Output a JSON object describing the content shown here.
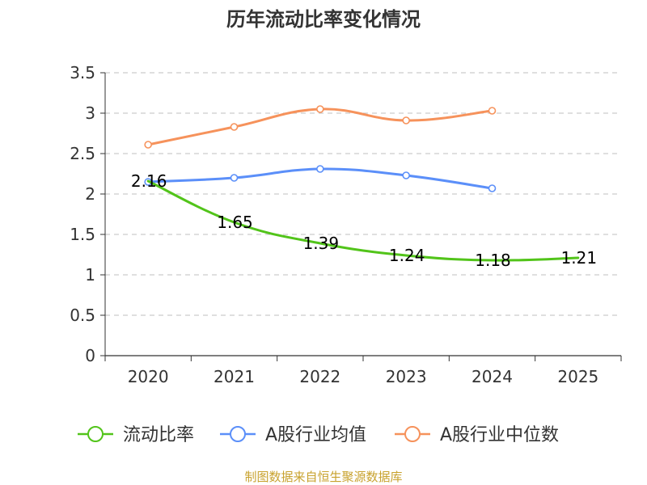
{
  "chart_data": {
    "type": "line",
    "title": "历年流动比率变化情况",
    "categories": [
      "2020",
      "2021",
      "2022",
      "2023",
      "2024",
      "2025"
    ],
    "y_ticks": [
      "0",
      "0.5",
      "1",
      "1.5",
      "2",
      "2.5",
      "3",
      "3.5"
    ],
    "ylim": [
      0,
      3.5
    ],
    "grid": true,
    "legend_position": "bottom",
    "series": [
      {
        "name": "流动比率",
        "color": "#52c41a",
        "values": [
          2.16,
          1.65,
          1.39,
          1.24,
          1.18,
          1.21
        ],
        "labels": [
          "2.16",
          "1.65",
          "1.39",
          "1.24",
          "1.18",
          "1.21"
        ],
        "show_labels": true,
        "marker_visible": false
      },
      {
        "name": "A股行业均值",
        "color": "#5b8ff9",
        "values": [
          2.15,
          2.2,
          2.31,
          2.23,
          2.07,
          null
        ],
        "show_labels": false,
        "marker_visible": true
      },
      {
        "name": "A股行业中位数",
        "color": "#f6925b",
        "values": [
          2.61,
          2.83,
          3.05,
          2.91,
          3.03,
          null
        ],
        "show_labels": false,
        "marker_visible": true
      }
    ]
  },
  "source": {
    "text": "制图数据来自恒生聚源数据库",
    "color": "#c8a22e"
  }
}
